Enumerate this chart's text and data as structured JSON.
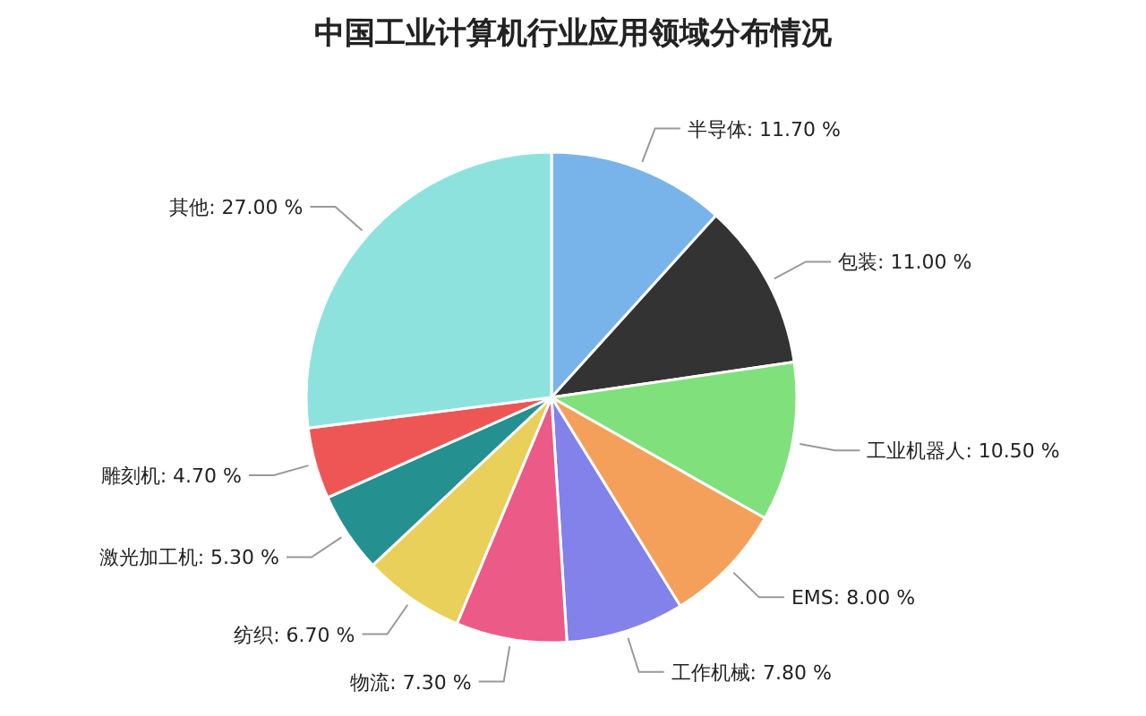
{
  "chart_data": {
    "type": "pie",
    "title": "中国工业计算机行业应用领域分布情况",
    "categories": [
      "半导体",
      "包装",
      "工业机器人",
      "EMS",
      "工作机械",
      "物流",
      "纺织",
      "激光加工机",
      "雕刻机",
      "其他"
    ],
    "values": [
      11.7,
      11.0,
      10.5,
      8.0,
      7.8,
      7.3,
      6.7,
      5.3,
      4.7,
      27.0
    ],
    "value_labels": [
      "11.70 %",
      "11.00 %",
      "10.50 %",
      "8.00 %",
      "7.80 %",
      "7.30 %",
      "6.70 %",
      "5.30 %",
      "4.70 %",
      "27.00 %"
    ],
    "colors": [
      "#78b4ea",
      "#333333",
      "#80e07c",
      "#f5a05a",
      "#8282ea",
      "#ec5a88",
      "#e8d05a",
      "#259090",
      "#ee5656",
      "#8ee2de"
    ]
  }
}
